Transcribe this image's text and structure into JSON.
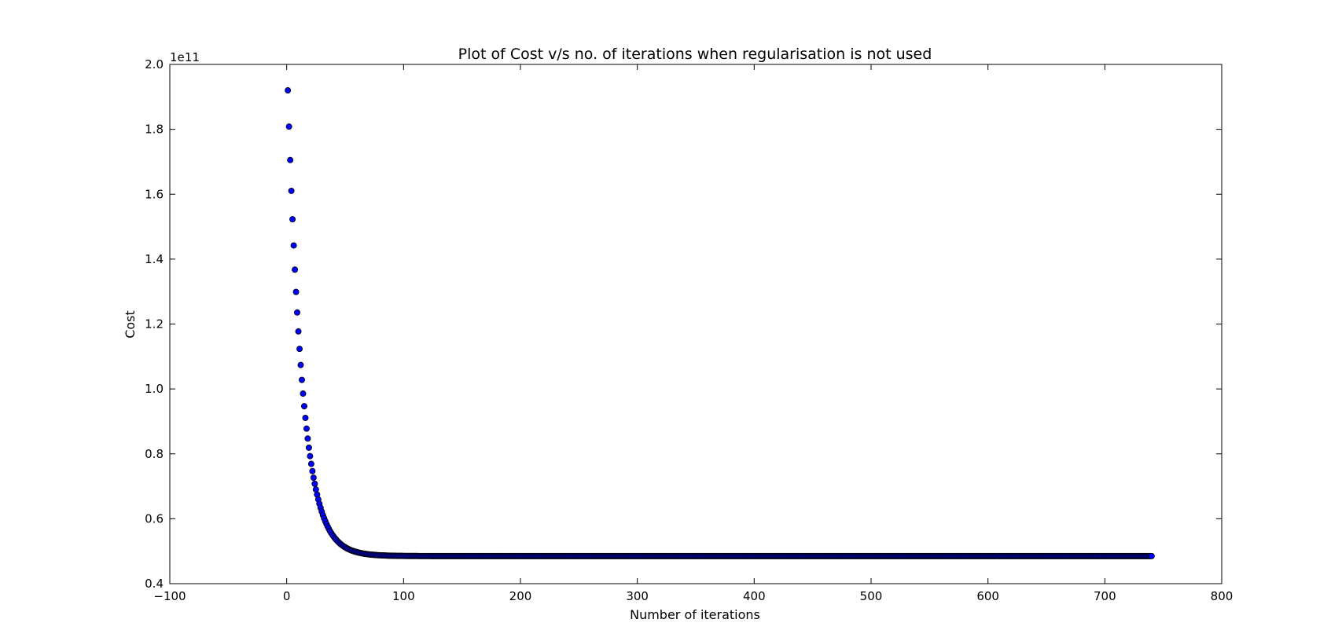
{
  "chart_data": {
    "type": "scatter",
    "title": "Plot of Cost v/s no. of iterations when regularisation is not used",
    "xlabel": "Number of iterations",
    "ylabel": "Cost",
    "y_offset_label": "1e11",
    "xlim": [
      -100,
      800
    ],
    "ylim": [
      0.4,
      2.0
    ],
    "y_units_multiplier": 100000000000.0,
    "xticks": [
      "−100",
      "0",
      "100",
      "200",
      "300",
      "400",
      "500",
      "600",
      "700",
      "800"
    ],
    "xtick_values": [
      -100,
      0,
      100,
      200,
      300,
      400,
      500,
      600,
      700,
      800
    ],
    "yticks": [
      "0.4",
      "0.6",
      "0.8",
      "1.0",
      "1.2",
      "1.4",
      "1.6",
      "1.8",
      "2.0"
    ],
    "ytick_values": [
      0.4,
      0.6,
      0.8,
      1.0,
      1.2,
      1.4,
      1.6,
      1.8,
      2.0
    ],
    "grid": false,
    "legend": "none",
    "marker_color": "#0000ff",
    "marker_edge_color": "#000000",
    "series": [
      {
        "x_start": 1,
        "x_end": 740,
        "x_step": 1,
        "model": "exponential decay",
        "initial_value": 1.92,
        "asymptote": 0.485,
        "decay_rate": 0.081
      }
    ]
  }
}
